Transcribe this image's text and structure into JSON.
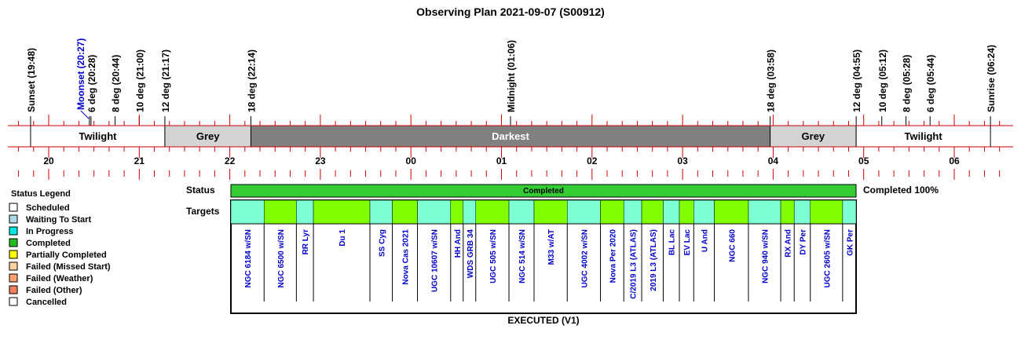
{
  "title": "Observing Plan 2021-09-07 (S00912)",
  "chart_data": {
    "type": "timeline",
    "title": "Observing Plan 2021-09-07 (S00912)",
    "xlim_hours": [
      19.6,
      30.5
    ],
    "hour_labels": [
      "20",
      "21",
      "22",
      "23",
      "00",
      "01",
      "02",
      "03",
      "04",
      "05",
      "06"
    ],
    "events": [
      {
        "label": "Sunset (19:48)",
        "t": 19.8
      },
      {
        "label": "Moonset (20:27)",
        "t": 20.45,
        "color": "#0000cc",
        "leader": true
      },
      {
        "label": "6 deg (20:28)",
        "t": 20.467
      },
      {
        "label": "8 deg (20:44)",
        "t": 20.733
      },
      {
        "label": "10 deg (21:00)",
        "t": 21.0
      },
      {
        "label": "12 deg (21:17)",
        "t": 21.283
      },
      {
        "label": "18 deg (22:14)",
        "t": 22.233
      },
      {
        "label": "Midnight (01:06)",
        "t": 25.1
      },
      {
        "label": "18 deg (03:58)",
        "t": 27.967
      },
      {
        "label": "12 deg (04:55)",
        "t": 28.917
      },
      {
        "label": "10 deg (05:12)",
        "t": 29.2
      },
      {
        "label": "8 deg (05:28)",
        "t": 29.467
      },
      {
        "label": "6 deg (05:44)",
        "t": 29.733
      },
      {
        "label": "Sunrise (06:24)",
        "t": 30.4
      }
    ],
    "twilight_bands": [
      {
        "label": "Twilight",
        "start": 19.8,
        "end": 21.283,
        "color": "#ffffff"
      },
      {
        "label": "Grey",
        "start": 21.283,
        "end": 22.233,
        "color": "#d3d3d3"
      },
      {
        "label": "Darkest",
        "start": 22.233,
        "end": 27.967,
        "color": "#808080",
        "text_color": "#ffffff"
      },
      {
        "label": "Grey",
        "start": 27.967,
        "end": 28.917,
        "color": "#d3d3d3"
      },
      {
        "label": "Twilight",
        "start": 28.917,
        "end": 30.4,
        "color": "#ffffff"
      }
    ],
    "status": {
      "label": "Status",
      "text": "Completed",
      "summary": "Completed 100%",
      "start": 21.3,
      "end": 28.24,
      "color": "#33cc33"
    },
    "targets_label": "Targets",
    "targets": [
      {
        "name": "NGC 6184 w/SN",
        "start": 21.3,
        "end": 21.67,
        "status_color": "#7fffd4"
      },
      {
        "name": "NGC 6500 w/SN",
        "start": 21.67,
        "end": 22.03,
        "status_color": "#7fff00"
      },
      {
        "name": "RR Lyr",
        "start": 22.03,
        "end": 22.22,
        "status_color": "#7fffd4"
      },
      {
        "name": "Du 1",
        "start": 22.22,
        "end": 22.85,
        "status_color": "#7fff00"
      },
      {
        "name": "SS Cyg",
        "start": 22.85,
        "end": 23.1,
        "status_color": "#7fffd4"
      },
      {
        "name": "Nova Cas 2021",
        "start": 23.1,
        "end": 23.38,
        "status_color": "#7fff00"
      },
      {
        "name": "UGC 10607 w/SN",
        "start": 23.38,
        "end": 23.75,
        "status_color": "#7fffd4"
      },
      {
        "name": "HH And",
        "start": 23.75,
        "end": 23.89,
        "status_color": "#7fff00"
      },
      {
        "name": "WDS GRB 34",
        "start": 23.89,
        "end": 24.03,
        "status_color": "#7fffd4"
      },
      {
        "name": "UGC 505 w/SN",
        "start": 24.03,
        "end": 24.4,
        "status_color": "#7fff00"
      },
      {
        "name": "NGC 514 w/SN",
        "start": 24.4,
        "end": 24.68,
        "status_color": "#7fffd4"
      },
      {
        "name": "M33 w/AT",
        "start": 24.68,
        "end": 25.05,
        "status_color": "#7fff00"
      },
      {
        "name": "UGC 4002 w/SN",
        "start": 25.05,
        "end": 25.42,
        "status_color": "#7fffd4"
      },
      {
        "name": "Nova Per 2020",
        "start": 25.42,
        "end": 25.68,
        "status_color": "#7fff00"
      },
      {
        "name": "C/2019 L3 (ATLAS)",
        "start": 25.68,
        "end": 25.88,
        "status_color": "#7fffd4"
      },
      {
        "name": "2019 L3 (ATLAS)",
        "start": 25.88,
        "end": 26.12,
        "status_color": "#7fff00"
      },
      {
        "name": "BL Lac",
        "start": 26.12,
        "end": 26.3,
        "status_color": "#7fffd4"
      },
      {
        "name": "EV Lac",
        "start": 26.3,
        "end": 26.46,
        "status_color": "#7fff00"
      },
      {
        "name": "U And",
        "start": 26.46,
        "end": 26.69,
        "status_color": "#7fffd4"
      },
      {
        "name": "NGC 660",
        "start": 26.69,
        "end": 27.07,
        "status_color": "#7fff00"
      },
      {
        "name": "NGC 940 w/SN",
        "start": 27.07,
        "end": 27.43,
        "status_color": "#7fffd4"
      },
      {
        "name": "RX And",
        "start": 27.43,
        "end": 27.58,
        "status_color": "#7fff00"
      },
      {
        "name": "DY Per",
        "start": 27.58,
        "end": 27.76,
        "status_color": "#7fffd4"
      },
      {
        "name": "UGC 2605 w/SN",
        "start": 27.76,
        "end": 28.12,
        "status_color": "#7fff00"
      },
      {
        "name": "GK Per",
        "start": 28.12,
        "end": 28.27,
        "status_color": "#7fffd4"
      }
    ],
    "footer": "EXECUTED (V1)",
    "legend": {
      "title": "Status Legend",
      "items": [
        {
          "label": "Scheduled",
          "color": "#ffffff"
        },
        {
          "label": "Waiting To Start",
          "color": "#add8e6"
        },
        {
          "label": "In Progress",
          "color": "#00e5e5"
        },
        {
          "label": "Completed",
          "color": "#22bb22"
        },
        {
          "label": "Partially Completed",
          "color": "#ffff00"
        },
        {
          "label": "Failed (Missed Start)",
          "color": "#ffd0a0"
        },
        {
          "label": "Failed (Weather)",
          "color": "#ffa070"
        },
        {
          "label": "Failed (Other)",
          "color": "#f08060"
        },
        {
          "label": "Cancelled",
          "color": "#ffffff"
        }
      ]
    },
    "colors": {
      "axis": "#cc0000",
      "target_text": "#0000cc"
    }
  }
}
